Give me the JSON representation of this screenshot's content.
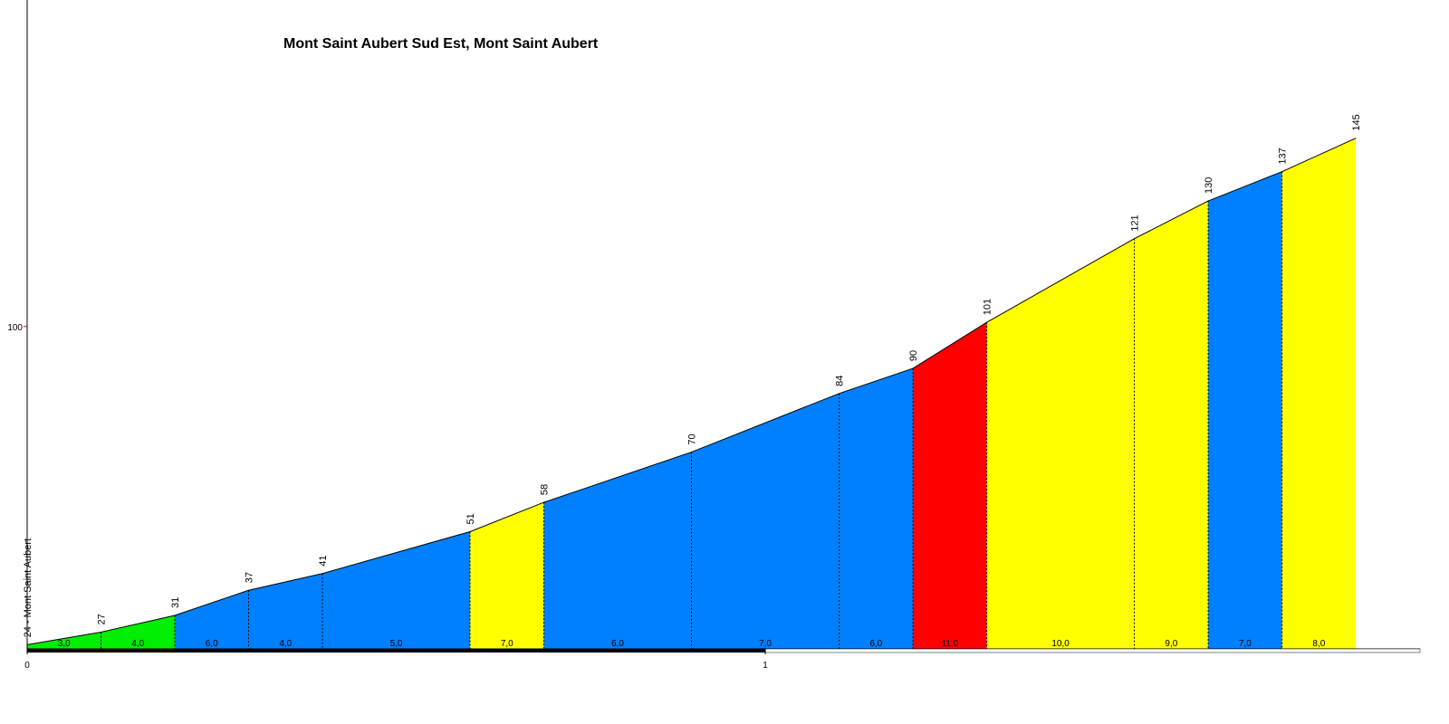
{
  "chart_data": {
    "type": "area",
    "title": "Mont Saint Aubert Sud Est, Mont Saint Aubert",
    "x": [
      0,
      0.1,
      0.2,
      0.3,
      0.4,
      0.6,
      0.7,
      0.9,
      1.1,
      1.2,
      1.3,
      1.5,
      1.6,
      1.7,
      1.8
    ],
    "values": [
      24,
      27,
      31,
      37,
      41,
      51,
      58,
      70,
      84,
      90,
      101,
      121,
      130,
      137,
      145
    ],
    "value_labels": [
      "24 - Mont Saint Aubert",
      "27",
      "31",
      "37",
      "41",
      "51",
      "58",
      "70",
      "84",
      "90",
      "101",
      "121",
      "130",
      "137",
      "145"
    ],
    "segments": {
      "values": [
        3,
        4,
        6,
        4,
        5,
        7,
        6,
        7,
        6,
        11,
        10,
        9,
        7,
        8
      ],
      "value_labels": [
        "3,0",
        "4,0",
        "6,0",
        "4,0",
        "5,0",
        "7,0",
        "6,0",
        "7,0",
        "6,0",
        "11,0",
        "10,0",
        "9,0",
        "7,0",
        "8,0"
      ],
      "colors": [
        "#00ee00",
        "#00ee00",
        "#0080ff",
        "#0080ff",
        "#0080ff",
        "#ffff00",
        "#0080ff",
        "#0080ff",
        "#0080ff",
        "#ff0000",
        "#ffff00",
        "#ffff00",
        "#0080ff",
        "#ffff00"
      ]
    },
    "xlim": [
      0,
      1.887
    ],
    "xticks": [
      0,
      1
    ],
    "ylim": [
      23,
      178
    ],
    "yticks": [
      100
    ]
  }
}
